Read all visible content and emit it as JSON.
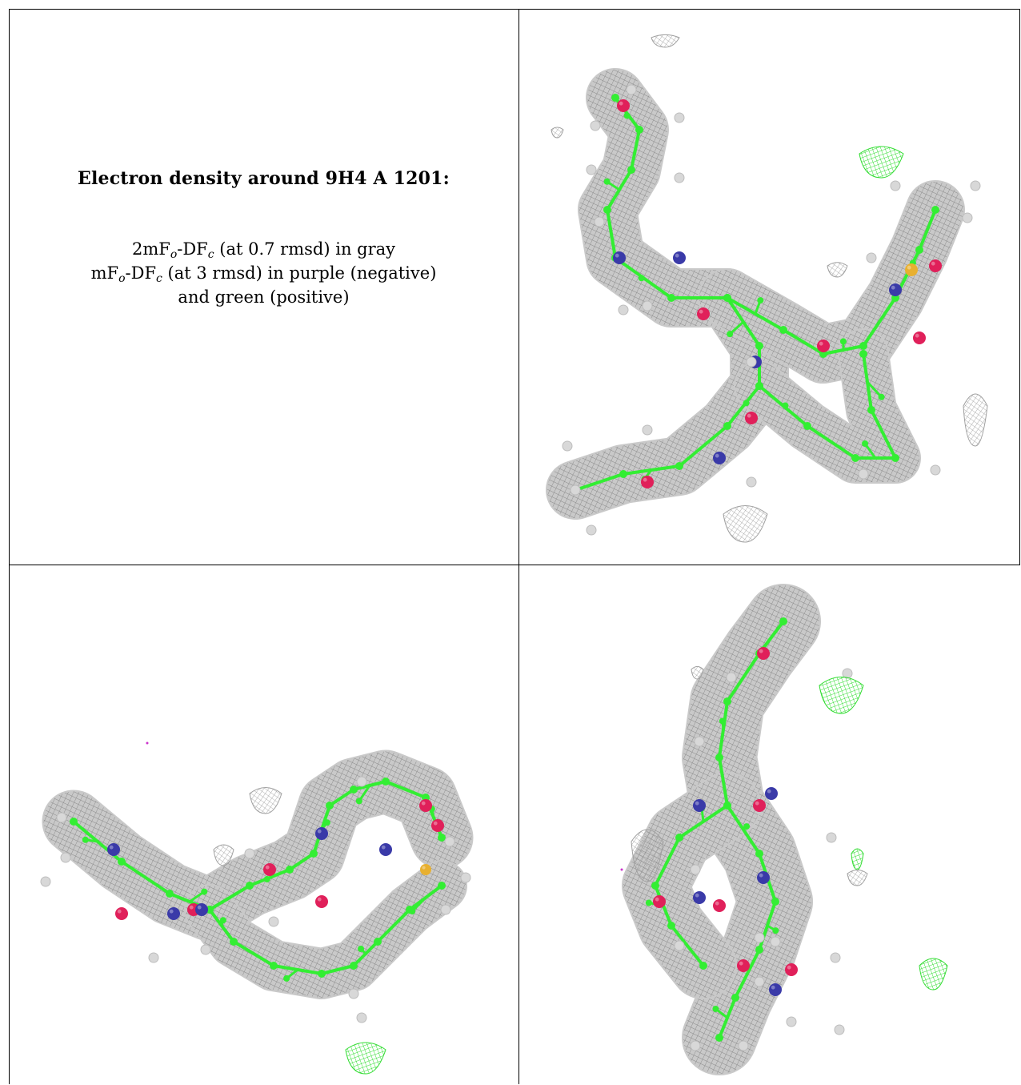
{
  "caption": {
    "title": "Electron density around 9H4 A 1201:",
    "line1": {
      "pre": "2mF",
      "sub1": "o",
      "mid": "-DF",
      "sub2": "c",
      "post": " (at 0.7 rmsd) in gray"
    },
    "line2": {
      "pre": "mF",
      "sub1": "o",
      "mid": "-DF",
      "sub2": "c",
      "post": " (at 3 rmsd) in purple (negative)"
    },
    "line3": "and green (positive)"
  },
  "colors": {
    "mesh_gray": "#8a8a8a",
    "carbon_green": "#33ee33",
    "oxygen_red": "#e0205a",
    "nitrogen_blue": "#3a3aa8",
    "sulfur_orange": "#e8b030",
    "hydrogen_white": "#d8d8d8",
    "positive_green": "#33dd33",
    "negative_purple": "#cc33cc"
  },
  "panels": [
    {
      "id": "top-right",
      "view": "density view 1"
    },
    {
      "id": "bottom-left",
      "view": "density view 2"
    },
    {
      "id": "bottom-right",
      "view": "density view 3"
    }
  ]
}
